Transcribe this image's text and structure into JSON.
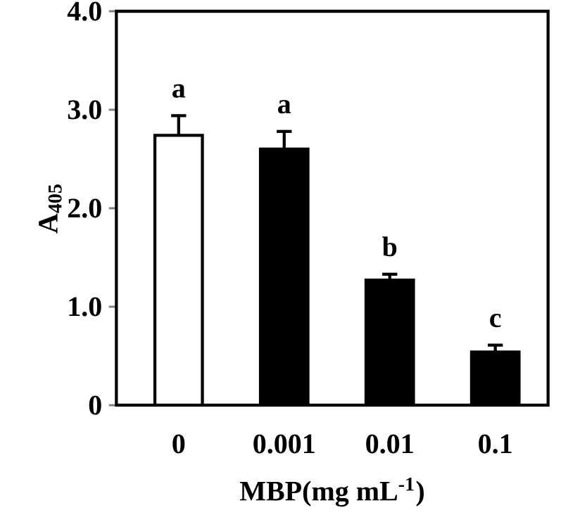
{
  "chart_data": {
    "type": "bar",
    "xlabel": "MBP(mg mL$^{-1}$)",
    "ylabel": "A$_{405}$",
    "categories": [
      "0",
      "0.001",
      "0.01",
      "0.1"
    ],
    "values": [
      2.74,
      2.6,
      1.27,
      0.54
    ],
    "errors": [
      [
        2.74,
        2.94
      ],
      [
        2.6,
        2.78
      ],
      [
        1.27,
        1.33
      ],
      [
        0.54,
        0.61
      ]
    ],
    "colors": [
      "#ffffff",
      "#000000",
      "#000000",
      "#000000"
    ],
    "ylim": [
      0,
      4
    ],
    "yticks": [
      0,
      {
        "value": 1,
        "label": "1.0"
      },
      {
        "value": 2,
        "label": "2.0"
      },
      {
        "value": 3,
        "label": "3.0"
      },
      {
        "value": 4,
        "label": "4.0"
      }
    ],
    "annotations": [
      "a",
      "a",
      "b",
      "c"
    ],
    "grid": false
  }
}
